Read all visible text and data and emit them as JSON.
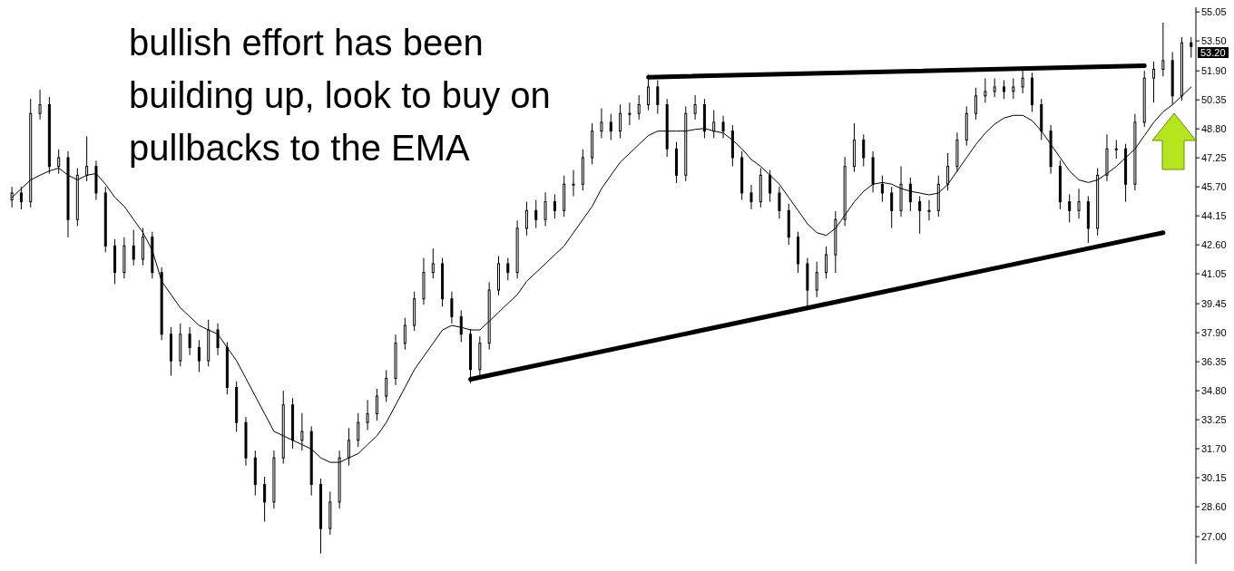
{
  "chart_data": {
    "type": "candlestick",
    "categories": [
      null,
      null,
      null,
      null,
      null,
      null,
      null,
      null,
      null,
      null,
      null,
      null,
      null,
      null,
      null,
      null,
      null,
      null,
      null,
      null,
      null,
      null,
      null,
      null,
      null,
      null,
      null,
      null,
      null,
      null,
      null,
      null,
      null,
      null,
      null,
      null,
      null,
      null,
      null,
      null,
      null,
      null,
      null,
      null,
      null,
      null,
      null,
      null,
      null,
      null,
      null,
      null,
      null,
      null,
      null,
      null,
      null,
      null,
      null,
      null,
      null,
      null,
      null,
      null,
      null,
      null,
      null,
      null,
      null,
      null,
      null,
      null,
      null,
      null,
      null,
      null,
      null,
      null,
      null,
      null,
      null,
      null,
      null,
      null,
      null,
      null,
      null,
      null,
      null,
      null,
      null,
      null,
      null,
      null,
      null,
      null,
      null,
      null,
      null,
      null,
      null,
      null,
      null,
      null,
      null,
      null,
      null,
      null,
      null,
      null,
      null,
      null,
      null,
      null,
      null,
      null,
      null,
      null,
      null,
      null,
      null,
      null,
      null,
      null,
      null,
      null,
      null
    ],
    "color": "#000000",
    "ohlc": [
      [
        45.0,
        45.7,
        44.6,
        45.37
      ],
      [
        45.37,
        45.7,
        44.5,
        44.9
      ],
      [
        44.9,
        50.4,
        44.6,
        49.62
      ],
      [
        49.62,
        50.9,
        49.3,
        50.09
      ],
      [
        50.09,
        50.5,
        46.4,
        46.79
      ],
      [
        46.79,
        47.7,
        46.4,
        47.26
      ],
      [
        47.26,
        47.6,
        43.0,
        43.95
      ],
      [
        43.95,
        46.7,
        43.6,
        46.32
      ],
      [
        46.32,
        48.4,
        46.0,
        46.79
      ],
      [
        46.79,
        47.1,
        45.0,
        45.37
      ],
      [
        45.37,
        45.7,
        42.2,
        42.54
      ],
      [
        42.54,
        42.9,
        40.5,
        41.12
      ],
      [
        41.12,
        43.0,
        40.8,
        42.54
      ],
      [
        42.54,
        43.4,
        41.5,
        41.83
      ],
      [
        41.83,
        43.5,
        41.5,
        43.01
      ],
      [
        43.01,
        43.3,
        40.8,
        41.12
      ],
      [
        41.12,
        41.4,
        37.5,
        37.82
      ],
      [
        37.82,
        38.2,
        35.6,
        36.4
      ],
      [
        36.4,
        38.4,
        36.1,
        37.82
      ],
      [
        37.82,
        38.2,
        36.7,
        37.11
      ],
      [
        37.11,
        37.5,
        35.8,
        36.4
      ],
      [
        36.4,
        38.6,
        36.1,
        38.05
      ],
      [
        38.05,
        38.4,
        36.7,
        37.11
      ],
      [
        37.11,
        37.4,
        34.6,
        34.98
      ],
      [
        34.98,
        35.3,
        32.6,
        33.1
      ],
      [
        33.1,
        33.4,
        30.8,
        31.21
      ],
      [
        31.21,
        31.6,
        29.2,
        29.79
      ],
      [
        29.79,
        30.2,
        27.8,
        28.85
      ],
      [
        28.85,
        31.6,
        28.5,
        31.21
      ],
      [
        31.21,
        34.8,
        30.9,
        34.04
      ],
      [
        34.04,
        34.4,
        31.7,
        32.15
      ],
      [
        32.15,
        33.6,
        31.6,
        32.62
      ],
      [
        32.62,
        32.9,
        29.2,
        29.79
      ],
      [
        29.79,
        30.1,
        26.1,
        27.43
      ],
      [
        27.43,
        29.4,
        27.1,
        28.85
      ],
      [
        28.85,
        31.6,
        28.5,
        31.21
      ],
      [
        31.21,
        32.8,
        30.8,
        32.15
      ],
      [
        32.15,
        33.6,
        31.8,
        33.1
      ],
      [
        33.1,
        34.3,
        32.7,
        33.57
      ],
      [
        33.57,
        34.9,
        33.2,
        34.51
      ],
      [
        34.51,
        35.9,
        34.2,
        35.46
      ],
      [
        35.46,
        37.8,
        35.1,
        37.34
      ],
      [
        37.34,
        38.7,
        37.0,
        38.29
      ],
      [
        38.29,
        40.1,
        38.0,
        39.71
      ],
      [
        39.71,
        41.9,
        39.4,
        41.12
      ],
      [
        41.12,
        42.4,
        40.8,
        41.59
      ],
      [
        41.59,
        41.9,
        39.3,
        39.71
      ],
      [
        39.71,
        40.1,
        38.4,
        38.76
      ],
      [
        38.76,
        39.1,
        37.4,
        37.82
      ],
      [
        37.82,
        38.1,
        35.2,
        35.93
      ],
      [
        35.93,
        37.7,
        35.6,
        37.34
      ],
      [
        37.34,
        40.6,
        37.0,
        40.18
      ],
      [
        40.18,
        42.0,
        39.9,
        41.59
      ],
      [
        41.59,
        41.9,
        40.7,
        41.12
      ],
      [
        41.12,
        43.9,
        40.8,
        43.48
      ],
      [
        43.48,
        44.9,
        43.1,
        44.43
      ],
      [
        44.43,
        45.0,
        43.5,
        43.95
      ],
      [
        43.95,
        45.4,
        43.6,
        44.9
      ],
      [
        44.9,
        45.3,
        44.0,
        44.43
      ],
      [
        44.43,
        46.3,
        44.1,
        45.84
      ],
      [
        45.84,
        46.6,
        45.2,
        45.84
      ],
      [
        45.84,
        47.7,
        45.5,
        47.26
      ],
      [
        47.26,
        49.1,
        46.9,
        48.68
      ],
      [
        48.68,
        49.9,
        48.3,
        49.15
      ],
      [
        49.15,
        49.6,
        48.2,
        48.68
      ],
      [
        48.68,
        50.1,
        48.3,
        49.62
      ],
      [
        49.62,
        50.2,
        49.0,
        49.62
      ],
      [
        49.62,
        50.6,
        49.3,
        50.09
      ],
      [
        50.09,
        51.7,
        49.8,
        51.04
      ],
      [
        51.04,
        51.4,
        49.6,
        50.09
      ],
      [
        50.09,
        50.4,
        47.3,
        47.73
      ],
      [
        47.73,
        48.1,
        45.9,
        46.32
      ],
      [
        46.32,
        50.0,
        46.0,
        49.62
      ],
      [
        49.62,
        50.6,
        49.3,
        50.09
      ],
      [
        50.09,
        50.4,
        48.3,
        48.68
      ],
      [
        48.68,
        49.8,
        48.3,
        49.15
      ],
      [
        49.15,
        49.5,
        48.3,
        48.68
      ],
      [
        48.68,
        49.0,
        46.8,
        47.26
      ],
      [
        47.26,
        47.6,
        45.0,
        45.37
      ],
      [
        45.37,
        45.8,
        44.5,
        44.9
      ],
      [
        44.9,
        46.7,
        44.6,
        46.32
      ],
      [
        46.32,
        46.6,
        44.9,
        45.37
      ],
      [
        45.37,
        45.7,
        44.0,
        44.43
      ],
      [
        44.43,
        44.8,
        42.6,
        43.01
      ],
      [
        43.01,
        43.3,
        41.1,
        41.59
      ],
      [
        41.59,
        41.9,
        39.3,
        40.18
      ],
      [
        40.18,
        41.7,
        39.8,
        41.12
      ],
      [
        41.12,
        42.5,
        40.8,
        42.07
      ],
      [
        42.07,
        44.4,
        41.1,
        43.95
      ],
      [
        43.95,
        47.3,
        43.6,
        46.79
      ],
      [
        46.79,
        49.1,
        46.5,
        48.2
      ],
      [
        48.2,
        48.5,
        46.8,
        47.26
      ],
      [
        47.26,
        47.6,
        45.4,
        45.84
      ],
      [
        45.84,
        46.3,
        44.9,
        45.37
      ],
      [
        45.37,
        45.7,
        43.5,
        44.43
      ],
      [
        44.43,
        46.8,
        44.1,
        45.84
      ],
      [
        45.84,
        46.2,
        44.4,
        44.9
      ],
      [
        44.9,
        45.2,
        43.2,
        44.43
      ],
      [
        44.43,
        45.0,
        43.9,
        44.43
      ],
      [
        44.43,
        46.3,
        44.1,
        45.84
      ],
      [
        45.84,
        47.5,
        45.5,
        46.79
      ],
      [
        46.79,
        48.6,
        46.5,
        48.2
      ],
      [
        48.2,
        50.0,
        47.9,
        49.62
      ],
      [
        49.62,
        51.0,
        49.3,
        50.56
      ],
      [
        50.56,
        51.5,
        50.2,
        50.8
      ],
      [
        50.8,
        51.5,
        50.5,
        51.04
      ],
      [
        51.04,
        51.4,
        50.4,
        50.8
      ],
      [
        50.8,
        51.5,
        50.4,
        51.04
      ],
      [
        51.04,
        52.1,
        50.7,
        51.51
      ],
      [
        51.51,
        51.8,
        49.7,
        50.09
      ],
      [
        50.09,
        50.4,
        48.2,
        48.68
      ],
      [
        48.68,
        49.0,
        46.4,
        46.79
      ],
      [
        46.79,
        47.1,
        44.5,
        44.9
      ],
      [
        44.9,
        45.3,
        43.8,
        44.43
      ],
      [
        44.43,
        45.6,
        44.0,
        44.9
      ],
      [
        44.9,
        45.2,
        42.7,
        43.48
      ],
      [
        43.48,
        46.7,
        43.1,
        46.32
      ],
      [
        46.32,
        48.5,
        46.0,
        47.73
      ],
      [
        47.73,
        48.2,
        47.2,
        47.73
      ],
      [
        47.73,
        48.0,
        44.9,
        45.84
      ],
      [
        45.84,
        49.6,
        45.5,
        49.15
      ],
      [
        49.15,
        51.9,
        48.9,
        51.51
      ],
      [
        51.51,
        52.4,
        50.2,
        51.98
      ],
      [
        51.98,
        54.48,
        51.6,
        52.45
      ],
      [
        52.45,
        52.9,
        50.1,
        50.56
      ],
      [
        50.56,
        53.7,
        50.3,
        53.4
      ],
      [
        53.4,
        53.7,
        52.6,
        53.2
      ]
    ],
    "series": [
      {
        "type": "line",
        "color": "#000000",
        "values": [
          45.13,
          45.6,
          46.07,
          46.32,
          46.55,
          46.7,
          46.32,
          46.07,
          46.32,
          46.41,
          45.84,
          45.13,
          44.66,
          43.95,
          43.25,
          42.3,
          40.65,
          39.94,
          39.23,
          38.76,
          38.29,
          38.05,
          37.82,
          37.11,
          36.4,
          35.46,
          34.51,
          33.57,
          32.62,
          32.39,
          32.15,
          31.92,
          31.68,
          31.21,
          30.97,
          30.97,
          31.21,
          31.44,
          31.92,
          32.39,
          33.1,
          34.04,
          34.98,
          35.93,
          36.64,
          37.34,
          38.05,
          38.29,
          38.19,
          38.05,
          38.05,
          38.52,
          38.99,
          39.47,
          39.94,
          40.65,
          41.12,
          41.59,
          42.07,
          42.54,
          43.25,
          43.95,
          44.66,
          45.61,
          46.32,
          47.02,
          47.49,
          47.97,
          48.44,
          48.68,
          48.68,
          48.68,
          48.68,
          48.77,
          48.82,
          48.68,
          48.58,
          48.2,
          47.73,
          47.16,
          46.79,
          46.32,
          45.84,
          45.13,
          44.43,
          43.72,
          43.25,
          43.1,
          43.48,
          44.19,
          44.9,
          45.46,
          45.84,
          45.93,
          45.84,
          45.61,
          45.46,
          45.37,
          45.27,
          45.37,
          45.84,
          46.55,
          47.26,
          47.97,
          48.58,
          49.05,
          49.38,
          49.52,
          49.52,
          49.24,
          48.68,
          47.97,
          47.26,
          46.55,
          46.07,
          45.93,
          46.07,
          46.41,
          46.79,
          47.26,
          47.73,
          48.44,
          49.15,
          49.71,
          50.09,
          50.56,
          51.04
        ]
      },
      {
        "type": "line",
        "color": "#000000",
        "values": [
          null,
          null,
          null,
          null,
          null,
          null,
          null,
          null,
          null,
          null,
          null,
          null,
          null,
          null,
          null,
          null,
          null,
          null,
          null,
          null,
          null,
          null,
          null,
          null,
          null,
          null,
          null,
          null,
          null,
          null,
          null,
          null,
          null,
          null,
          null,
          null,
          null,
          null,
          null,
          null,
          null,
          null,
          null,
          null,
          null,
          null,
          null,
          null,
          null,
          null,
          null,
          null,
          null,
          null,
          null,
          null,
          null,
          null,
          null,
          null,
          null,
          null,
          null,
          null,
          null,
          null,
          null,
          null,
          51.56,
          null,
          null,
          null,
          null,
          null,
          null,
          null,
          null,
          null,
          null,
          null,
          null,
          null,
          null,
          null,
          null,
          null,
          null,
          null,
          null,
          null,
          null,
          null,
          null,
          null,
          null,
          null,
          null,
          null,
          null,
          null,
          null,
          null,
          null,
          null,
          null,
          null,
          null,
          null,
          null,
          null,
          null,
          null,
          null,
          null,
          null,
          null,
          null,
          null,
          null,
          null,
          null,
          52.17,
          null,
          null,
          null,
          null,
          null
        ]
      },
      {
        "type": "line",
        "color": "#000000",
        "values": [
          null,
          null,
          null,
          null,
          null,
          null,
          null,
          null,
          null,
          null,
          null,
          null,
          null,
          null,
          null,
          null,
          null,
          null,
          null,
          null,
          null,
          null,
          null,
          null,
          null,
          null,
          null,
          null,
          null,
          null,
          null,
          null,
          null,
          null,
          null,
          null,
          null,
          null,
          null,
          null,
          null,
          null,
          null,
          null,
          null,
          null,
          null,
          null,
          null,
          35.41,
          null,
          null,
          null,
          null,
          null,
          null,
          null,
          null,
          null,
          null,
          null,
          null,
          null,
          null,
          null,
          null,
          null,
          null,
          null,
          null,
          null,
          null,
          null,
          null,
          null,
          null,
          null,
          null,
          null,
          null,
          null,
          null,
          null,
          null,
          null,
          null,
          null,
          null,
          null,
          null,
          null,
          null,
          null,
          null,
          null,
          null,
          null,
          null,
          null,
          null,
          null,
          null,
          null,
          null,
          null,
          null,
          null,
          null,
          null,
          null,
          null,
          null,
          null,
          null,
          null,
          null,
          null,
          null,
          null,
          null,
          null,
          null,
          null,
          43.25,
          null,
          null,
          null
        ]
      }
    ],
    "ylim": [
      25.55,
      55.3
    ],
    "yticks": [
      55.05,
      {
        "value": 53.5,
        "label": "53.50"
      },
      {
        "value": 51.9,
        "label": "51.90"
      },
      50.35,
      {
        "value": 48.8,
        "label": "48.80"
      },
      47.25,
      {
        "value": 45.7,
        "label": "45.70"
      },
      44.15,
      {
        "value": 42.6,
        "label": "42.60"
      },
      41.05,
      39.45,
      {
        "value": 37.9,
        "label": "37.90"
      },
      36.35,
      {
        "value": 34.8,
        "label": "34.80"
      },
      33.25,
      {
        "value": 31.7,
        "label": "31.70"
      },
      30.15,
      {
        "value": 28.6,
        "label": "28.60"
      },
      {
        "value": 27,
        "label": "27.00"
      }
    ],
    "tick_labels": "y",
    "marker": "none",
    "annotations": [
      "bullish effort has been building up, look to buy on pullbacks to the EMA",
      "53.20"
    ]
  }
}
